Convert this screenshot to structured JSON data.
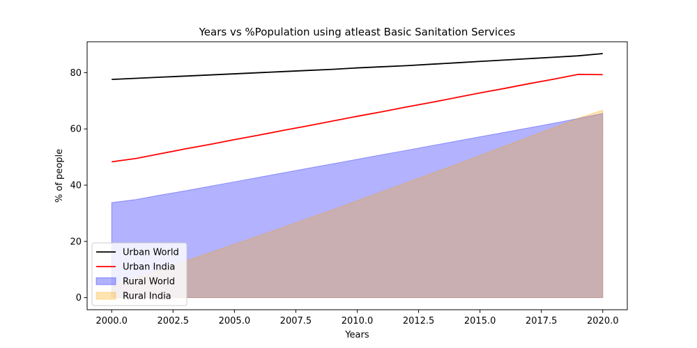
{
  "chart_data": {
    "type": "area",
    "title": "Years vs %Population using atleast Basic Sanitation Services",
    "xlabel": "Years",
    "ylabel": "% of people",
    "xlim": [
      1999.0,
      2021.0
    ],
    "ylim": [
      -4.3,
      91.0
    ],
    "xticks": [
      2000.0,
      2002.5,
      2005.0,
      2007.5,
      2010.0,
      2012.5,
      2015.0,
      2017.5,
      2020.0
    ],
    "xtick_labels": [
      "2000.0",
      "2002.5",
      "2005.0",
      "2007.5",
      "2010.0",
      "2012.5",
      "2015.0",
      "2017.5",
      "2020.0"
    ],
    "yticks": [
      0,
      20,
      40,
      60,
      80
    ],
    "ytick_labels": [
      "0",
      "20",
      "40",
      "60",
      "80"
    ],
    "grid": false,
    "legend_position": "lower-left",
    "series": [
      {
        "name": "Urban World",
        "kind": "line",
        "color": "#000000",
        "x": [
          2000,
          2001,
          2002,
          2003,
          2004,
          2005,
          2006,
          2007,
          2008,
          2009,
          2010,
          2011,
          2012,
          2013,
          2014,
          2015,
          2016,
          2017,
          2018,
          2019,
          2020
        ],
        "values": [
          77.6,
          78.0,
          78.4,
          78.8,
          79.2,
          79.6,
          80.0,
          80.4,
          80.8,
          81.2,
          81.7,
          82.1,
          82.5,
          83.0,
          83.5,
          84.0,
          84.5,
          85.0,
          85.5,
          86.0,
          86.8
        ]
      },
      {
        "name": "Urban India",
        "kind": "line",
        "color": "#ff0000",
        "x": [
          2000,
          2001,
          2002,
          2003,
          2004,
          2005,
          2006,
          2007,
          2008,
          2009,
          2010,
          2011,
          2012,
          2013,
          2014,
          2015,
          2016,
          2017,
          2018,
          2019,
          2020
        ],
        "values": [
          48.3,
          49.5,
          51.2,
          52.9,
          54.5,
          56.2,
          57.8,
          59.5,
          61.1,
          62.8,
          64.5,
          66.1,
          67.8,
          69.4,
          71.1,
          72.8,
          74.4,
          76.1,
          77.7,
          79.4,
          79.3
        ]
      },
      {
        "name": "Rural World",
        "kind": "area",
        "color": "#0000ff",
        "x": [
          2000,
          2001,
          2002,
          2003,
          2004,
          2005,
          2006,
          2007,
          2008,
          2009,
          2010,
          2011,
          2012,
          2013,
          2014,
          2015,
          2016,
          2017,
          2018,
          2019,
          2020
        ],
        "values": [
          33.8,
          34.9,
          36.5,
          38.0,
          39.6,
          41.2,
          42.8,
          44.4,
          46.0,
          47.6,
          49.2,
          50.8,
          52.4,
          54.0,
          55.6,
          57.2,
          58.8,
          60.4,
          62.0,
          63.7,
          65.5
        ]
      },
      {
        "name": "Rural India",
        "kind": "area",
        "color": "#ffa500",
        "x": [
          2000,
          2001,
          2002,
          2003,
          2004,
          2005,
          2006,
          2007,
          2008,
          2009,
          2010,
          2011,
          2012,
          2013,
          2014,
          2015,
          2016,
          2017,
          2018,
          2019,
          2020
        ],
        "values": [
          4.2,
          7.1,
          10.0,
          13.0,
          16.0,
          19.0,
          22.0,
          25.1,
          28.2,
          31.3,
          34.5,
          37.7,
          40.9,
          44.1,
          47.3,
          50.6,
          53.9,
          57.2,
          60.5,
          63.8,
          66.7
        ]
      }
    ]
  }
}
